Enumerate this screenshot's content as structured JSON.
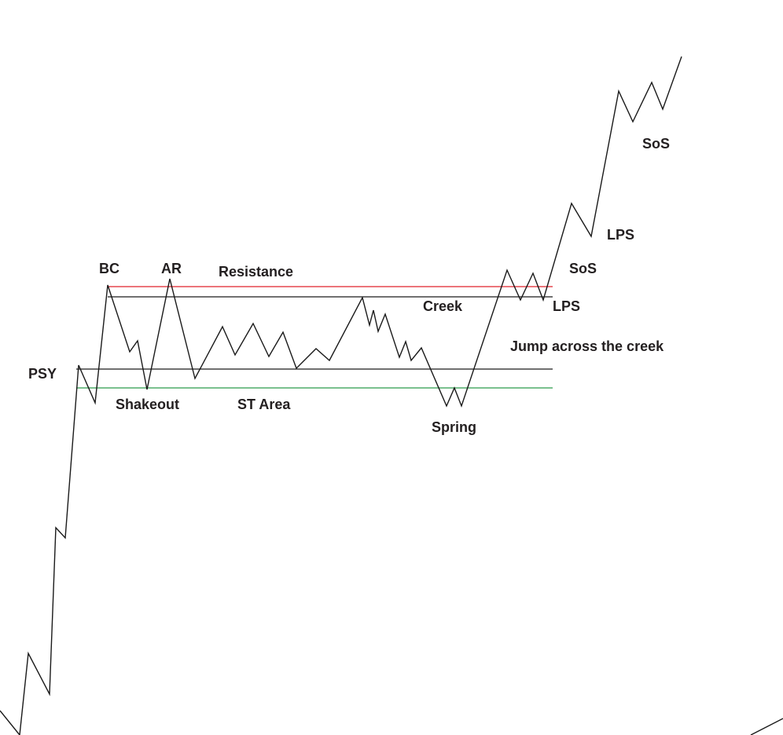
{
  "labels": {
    "psy": "PSY",
    "bc": "BC",
    "ar": "AR",
    "resistance": "Resistance",
    "creek": "Creek",
    "shakeout": "Shakeout",
    "st_area": "ST Area",
    "spring": "Spring",
    "lps_low": "LPS",
    "sos_low": "SoS",
    "jump": "Jump across the creek",
    "lps_high": "LPS",
    "sos_high": "SoS"
  },
  "colors": {
    "price_line": "#1a1a1a",
    "resistance_line": "#e0202a",
    "creek_line": "#1a1a1a",
    "support_line": "#1a1a1a",
    "spring_line": "#2a9a4a",
    "text": "#231f20"
  }
}
